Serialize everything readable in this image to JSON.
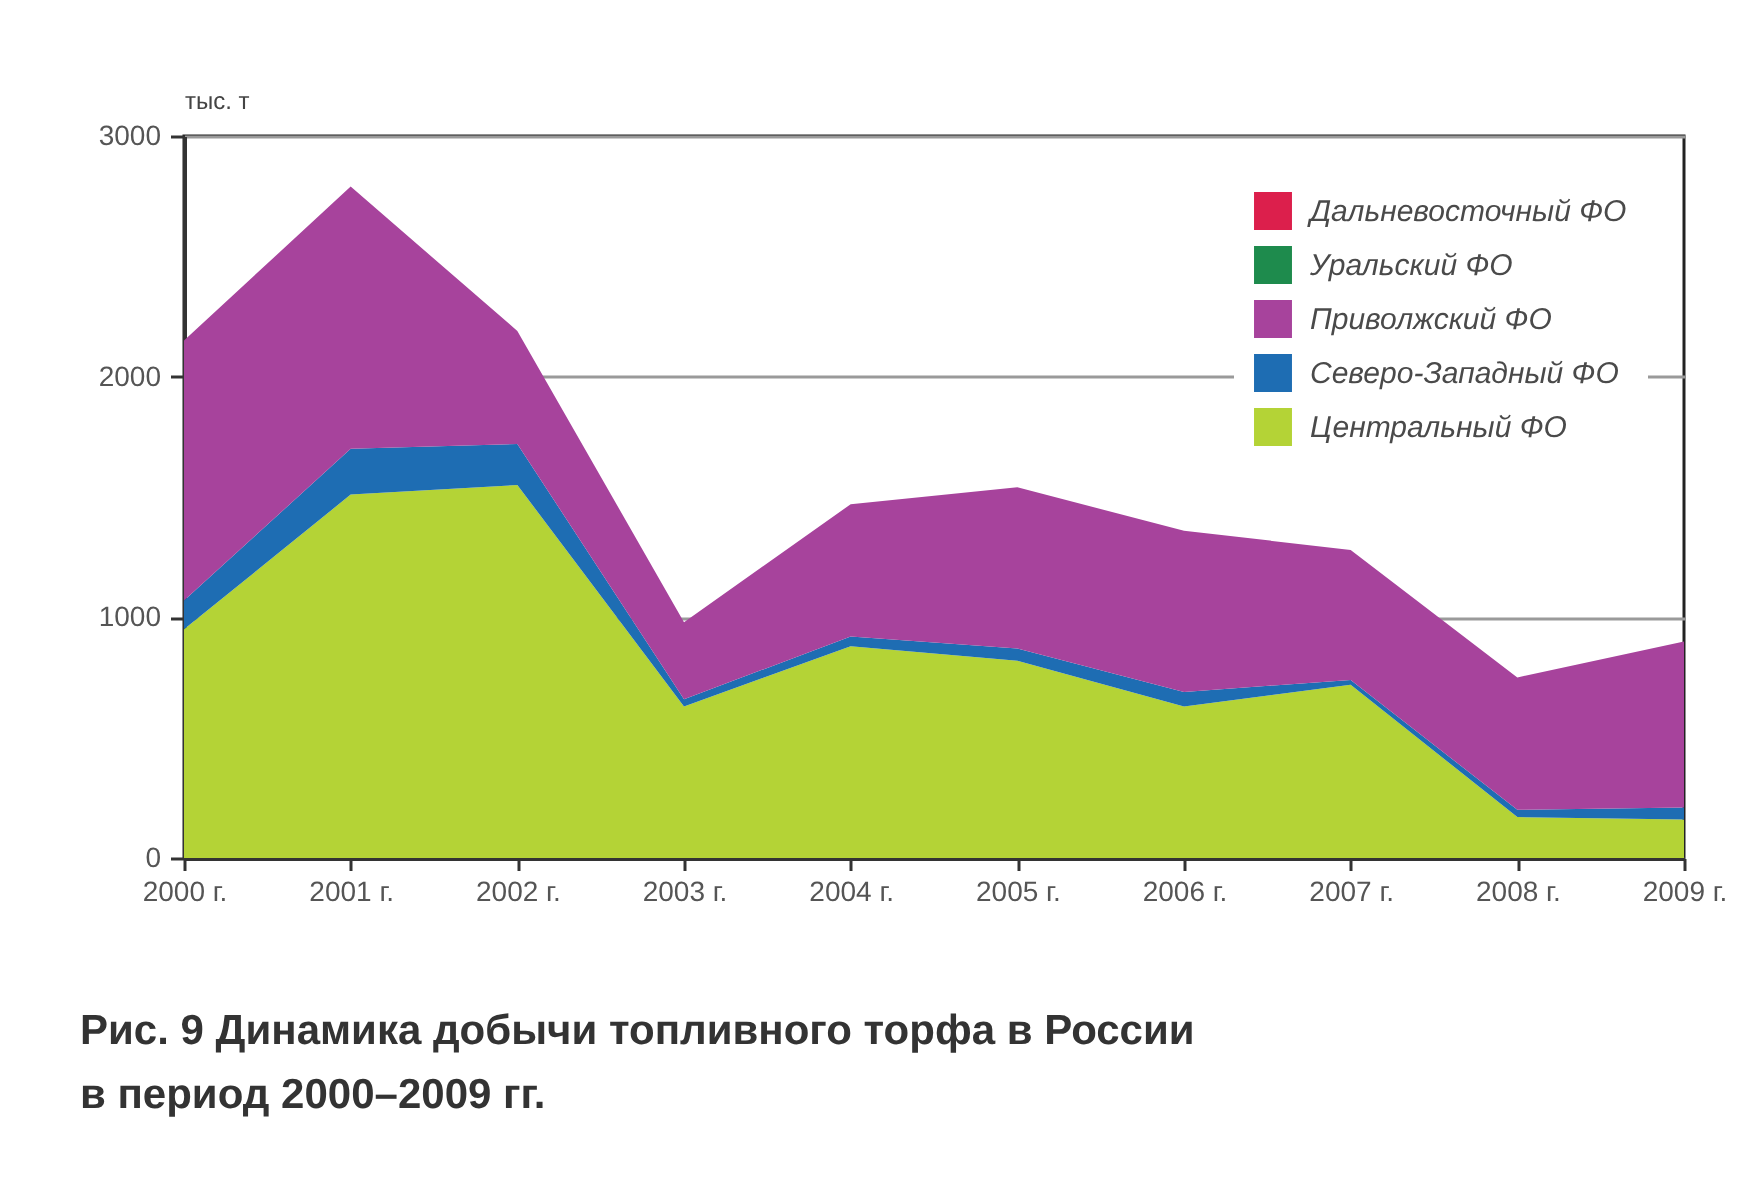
{
  "chart_data": {
    "type": "area",
    "title": "Рис. 9 Динамика добычи топливного торфа в России в период 2000–2009 гг.",
    "ylabel": "тыс. т",
    "categories": [
      "2000 г.",
      "2001 г.",
      "2002 г.",
      "2003 г.",
      "2004 г.",
      "2005 г.",
      "2006 г.",
      "2007 г.",
      "2008 г.",
      "2009 г."
    ],
    "series": [
      {
        "name": "Центральный ФО",
        "color": "#b4d336",
        "values": [
          950,
          1510,
          1550,
          630,
          880,
          820,
          630,
          720,
          170,
          160
        ]
      },
      {
        "name": "Северо-Западный ФО",
        "color": "#1e6db3",
        "values": [
          120,
          190,
          170,
          30,
          40,
          50,
          60,
          20,
          30,
          50
        ]
      },
      {
        "name": "Приволжский ФО",
        "color": "#a7439c",
        "values": [
          1080,
          1090,
          470,
          320,
          550,
          670,
          670,
          540,
          550,
          690
        ]
      },
      {
        "name": "Уральский ФО",
        "color": "#1e8b4d",
        "values": [
          null,
          null,
          null,
          null,
          null,
          null,
          null,
          null,
          null,
          null
        ]
      },
      {
        "name": "Дальневосточный ФО",
        "color": "#dc1f4c",
        "values": [
          null,
          null,
          null,
          null,
          null,
          null,
          null,
          null,
          null,
          null
        ]
      }
    ],
    "stacked": true,
    "ylim": [
      0,
      3000
    ],
    "yticks": [
      0,
      1000,
      2000,
      3000
    ],
    "grid": "y",
    "legend": "top right"
  }
}
